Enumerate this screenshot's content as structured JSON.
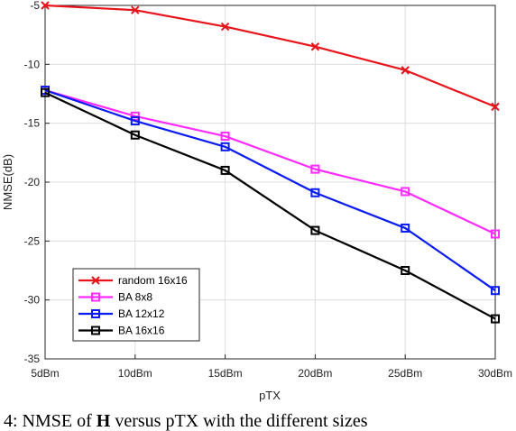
{
  "chart_data": {
    "type": "line",
    "xlabel": "pTX",
    "ylabel": "NMSE(dB)",
    "categories": [
      "5dBm",
      "10dBm",
      "15dBm",
      "20dBm",
      "25dBm",
      "30dBm"
    ],
    "x": [
      5,
      10,
      15,
      20,
      25,
      30
    ],
    "xlim": [
      5,
      30
    ],
    "ylim": [
      -35,
      -5
    ],
    "yticks": [
      -5,
      -10,
      -15,
      -20,
      -25,
      -30,
      -35
    ],
    "grid": true,
    "legend_position": "bottom-left",
    "series": [
      {
        "name": "random 16x16",
        "color": "#e8141b",
        "marker": "x",
        "values": [
          -5.0,
          -5.4,
          -6.8,
          -8.5,
          -10.5,
          -13.6
        ]
      },
      {
        "name": "BA 8x8",
        "color": "#ff2bff",
        "marker": "square",
        "values": [
          -12.2,
          -14.4,
          -16.1,
          -18.9,
          -20.8,
          -24.4
        ]
      },
      {
        "name": "BA 12x12",
        "color": "#0a1cf0",
        "marker": "square",
        "values": [
          -12.2,
          -14.8,
          -17.0,
          -20.9,
          -23.9,
          -29.2
        ]
      },
      {
        "name": "BA 16x16",
        "color": "#000000",
        "marker": "square",
        "values": [
          -12.4,
          -16.0,
          -19.0,
          -24.1,
          -27.5,
          -31.6
        ]
      }
    ]
  },
  "caption": {
    "prefix": "4: NMSE of ",
    "bold": "H",
    "suffix": " versus pTX with the different sizes"
  }
}
